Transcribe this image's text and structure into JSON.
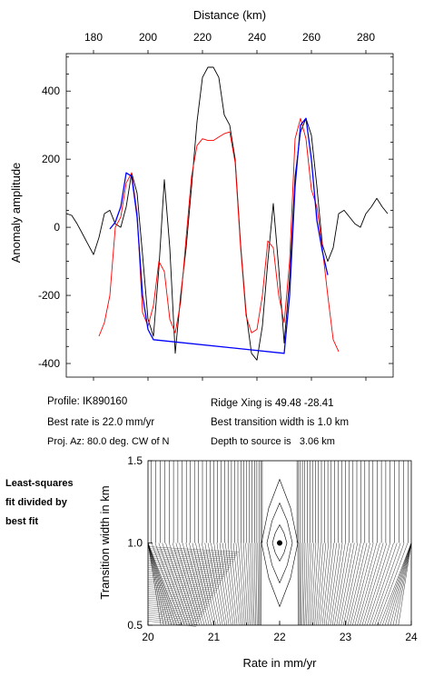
{
  "info": {
    "profile": "Profile: IK890160",
    "best_rate": "Best rate is 22.0 mm/yr",
    "proj_az": "Proj. Az: 80.0 deg. CW of N",
    "ridge_xing": "Ridge Xing is 49.48 -28.41",
    "best_width": "Best transition width is 1.0 km",
    "depth": "Depth to source is   3.06 km"
  },
  "side_label": [
    "Least-squares",
    "fit divided by",
    "best fit"
  ],
  "chart_data": [
    {
      "type": "line",
      "xlabel": "Distance (km)",
      "ylabel": "Anomaly amplitude",
      "xlim": [
        170,
        290
      ],
      "ylim": [
        -440,
        510
      ],
      "xticks": [
        180,
        200,
        220,
        240,
        260,
        280
      ],
      "yticks": [
        -400,
        -200,
        0,
        200,
        400
      ],
      "colors": {
        "observed": "#000000",
        "model": "#ff0000",
        "fit": "#0000ff"
      },
      "series": [
        {
          "key": "observed",
          "x": [
            170,
            172,
            174,
            176,
            178,
            180,
            182,
            184,
            186,
            188,
            190,
            192,
            194,
            196,
            198,
            200,
            202,
            204,
            206,
            208,
            210,
            212,
            214,
            216,
            218,
            220,
            222,
            224,
            226,
            228,
            230,
            232,
            234,
            236,
            238,
            240,
            242,
            244,
            246,
            248,
            250,
            252,
            254,
            256,
            258,
            260,
            262,
            264,
            266,
            268,
            270,
            272,
            274,
            276,
            278,
            280,
            282,
            284,
            286,
            288
          ],
          "y": [
            40,
            35,
            10,
            -20,
            -50,
            -80,
            -30,
            40,
            50,
            10,
            0,
            60,
            160,
            100,
            -80,
            -270,
            -320,
            -120,
            140,
            -60,
            -370,
            -200,
            -60,
            120,
            310,
            440,
            470,
            470,
            440,
            330,
            300,
            200,
            -50,
            -250,
            -370,
            -390,
            -290,
            -100,
            70,
            -120,
            -340,
            -150,
            150,
            280,
            320,
            270,
            120,
            -50,
            -100,
            -60,
            40,
            50,
            30,
            10,
            0,
            40,
            60,
            85,
            60,
            40
          ]
        },
        {
          "key": "model",
          "x": [
            182,
            184,
            186,
            188,
            190,
            192,
            194,
            196,
            198,
            200,
            202,
            204,
            206,
            208,
            210,
            212,
            214,
            216,
            218,
            220,
            222,
            224,
            226,
            228,
            230,
            232,
            234,
            236,
            238,
            240,
            242,
            244,
            246,
            248,
            250,
            252,
            254,
            256,
            258,
            260,
            262,
            264,
            266,
            268,
            270
          ],
          "y": [
            -320,
            -280,
            -200,
            0,
            30,
            130,
            160,
            40,
            -250,
            -290,
            -230,
            -100,
            -130,
            -270,
            -310,
            -220,
            -30,
            150,
            240,
            260,
            255,
            255,
            265,
            275,
            280,
            190,
            -60,
            -260,
            -310,
            -300,
            -200,
            -40,
            -60,
            -200,
            -280,
            -100,
            260,
            320,
            260,
            110,
            60,
            -60,
            -200,
            -330,
            -365
          ]
        },
        {
          "key": "fit",
          "x": [
            186,
            188,
            190,
            192,
            194,
            196,
            198,
            200,
            202,
            250,
            252,
            254,
            256,
            258,
            260,
            262,
            264,
            266
          ],
          "y": [
            -5,
            15,
            60,
            160,
            150,
            30,
            -200,
            -300,
            -330,
            -370,
            -200,
            120,
            300,
            320,
            200,
            20,
            -70,
            -140
          ]
        }
      ]
    },
    {
      "type": "contour",
      "xlabel": "Rate in mm/yr",
      "ylabel": "Transition width in km",
      "xlim": [
        20,
        24
      ],
      "ylim": [
        0.5,
        1.5
      ],
      "xticks": [
        20,
        21,
        22,
        23,
        24
      ],
      "yticks": [
        0.5,
        1.0,
        1.5
      ],
      "best_fit": {
        "rate": 22.0,
        "width": 1.0
      }
    }
  ]
}
